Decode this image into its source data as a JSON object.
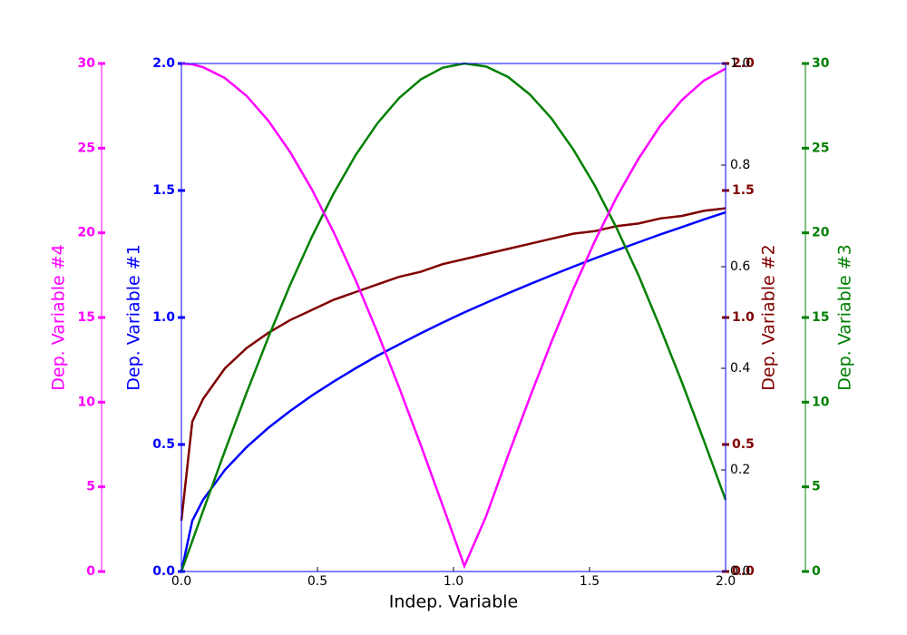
{
  "chart_data": {
    "type": "line",
    "x_label": "Indep. Variable",
    "x": [
      0,
      0.04,
      0.08,
      0.16,
      0.24,
      0.32,
      0.4,
      0.48,
      0.56,
      0.64,
      0.72,
      0.8,
      0.88,
      0.96,
      1.04,
      1.12,
      1.2,
      1.28,
      1.36,
      1.44,
      1.52,
      1.6,
      1.68,
      1.76,
      1.84,
      1.92,
      2.0
    ],
    "xlim": [
      0,
      2
    ],
    "xticks": [
      {
        "value": 0,
        "label": "0.0"
      },
      0.5,
      {
        "value": 1,
        "label": "1.0"
      },
      1.5,
      {
        "value": 2,
        "label": "2.0"
      }
    ],
    "y_axes": [
      {
        "label": "Dep. Variable #1",
        "color": "#0000ff",
        "lim": [
          0,
          2
        ],
        "ticks": [
          {
            "value": 0,
            "label": "0.0"
          },
          0.5,
          {
            "value": 1,
            "label": "1.0"
          },
          1.5,
          {
            "value": 2,
            "label": "2.0"
          }
        ]
      },
      {
        "label": "Dep. Variable #2",
        "color": "#800000",
        "lim": [
          0,
          2
        ],
        "ticks": [
          {
            "value": 0,
            "label": "0.0"
          },
          0.5,
          {
            "value": 1,
            "label": "1.0"
          },
          1.5,
          {
            "value": 2,
            "label": "2.0"
          }
        ]
      },
      {
        "label": "Dep. Variable #3",
        "color": "#008000",
        "lim": [
          0,
          30
        ],
        "ticks": [
          0,
          5,
          10,
          15,
          20,
          25,
          30
        ]
      },
      {
        "label": "Dep. Variable #4",
        "color": "#ff00ff",
        "lim": [
          0,
          30
        ],
        "ticks": [
          0,
          5,
          10,
          15,
          20,
          25,
          30
        ]
      },
      {
        "color": "#000000",
        "lim": [
          0,
          1
        ],
        "ticks": [
          {
            "value": 0,
            "label": "0.0"
          },
          0.2,
          0.4,
          0.6,
          0.8,
          {
            "value": 1,
            "label": "1.0"
          }
        ]
      }
    ],
    "series": [
      {
        "color": "#0000ff",
        "axis": 0,
        "values": [
          0,
          0.2,
          0.283,
          0.4,
          0.49,
          0.566,
          0.632,
          0.693,
          0.748,
          0.8,
          0.849,
          0.894,
          0.938,
          0.98,
          1.02,
          1.058,
          1.095,
          1.131,
          1.166,
          1.2,
          1.233,
          1.265,
          1.296,
          1.327,
          1.356,
          1.386,
          1.414
        ]
      },
      {
        "color": "#800000",
        "axis": 1,
        "values": [
          0.2,
          0.59,
          0.68,
          0.8,
          0.88,
          0.94,
          0.99,
          1.03,
          1.07,
          1.1,
          1.13,
          1.16,
          1.18,
          1.21,
          1.23,
          1.25,
          1.27,
          1.29,
          1.31,
          1.33,
          1.34,
          1.36,
          1.37,
          1.39,
          1.4,
          1.42,
          1.43
        ]
      },
      {
        "color": "#008000",
        "axis": 2,
        "values": [
          0,
          1.8,
          3.59,
          7.13,
          10.57,
          13.85,
          16.94,
          19.78,
          22.34,
          24.58,
          26.46,
          27.96,
          29.06,
          29.75,
          30.0,
          29.82,
          29.21,
          28.18,
          26.76,
          24.93,
          22.77,
          20.26,
          17.49,
          14.39,
          11.15,
          7.74,
          4.23
        ]
      },
      {
        "color": "#ff00ff",
        "axis": 3,
        "values": [
          30,
          29.95,
          29.78,
          29.14,
          28.08,
          26.61,
          24.76,
          22.55,
          20.03,
          17.21,
          14.14,
          10.87,
          7.45,
          3.91,
          0.32,
          3.27,
          6.82,
          10.26,
          13.56,
          16.67,
          19.53,
          22.12,
          24.38,
          26.33,
          27.85,
          28.99,
          29.7
        ]
      }
    ]
  }
}
